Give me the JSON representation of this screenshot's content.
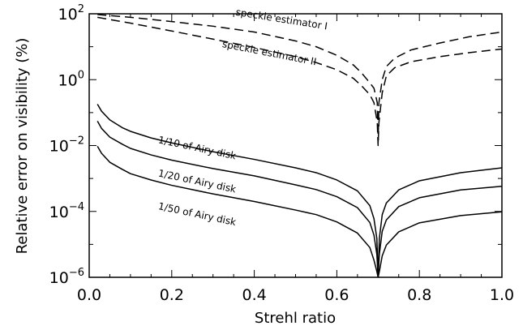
{
  "chart_data": {
    "type": "line",
    "xlabel": "Strehl ratio",
    "ylabel": "Relative error on visibility (%)",
    "xlim": [
      0.0,
      1.0
    ],
    "ylim": [
      1e-06,
      100
    ],
    "yscale": "log",
    "x_ticks": [
      0.0,
      0.2,
      0.4,
      0.6,
      0.8,
      1.0
    ],
    "x_tick_labels": [
      "0.0",
      "0.2",
      "0.4",
      "0.6",
      "0.8",
      "1.0"
    ],
    "y_ticks": [
      {
        "value": 1e-06,
        "base": "10",
        "exp": "−6"
      },
      {
        "value": 0.0001,
        "base": "10",
        "exp": "−4"
      },
      {
        "value": 0.01,
        "base": "10",
        "exp": "−2"
      },
      {
        "value": 1,
        "base": "10",
        "exp": "0"
      },
      {
        "value": 100,
        "base": "10",
        "exp": "2"
      }
    ],
    "grid": false,
    "series": [
      {
        "name": "speckle estimator I",
        "style": "dashed",
        "points": [
          [
            0.02,
            95
          ],
          [
            0.1,
            78
          ],
          [
            0.2,
            58
          ],
          [
            0.3,
            42
          ],
          [
            0.4,
            28
          ],
          [
            0.5,
            15
          ],
          [
            0.55,
            10
          ],
          [
            0.6,
            5.5
          ],
          [
            0.64,
            2.8
          ],
          [
            0.66,
            1.6
          ],
          [
            0.68,
            0.8
          ],
          [
            0.69,
            0.55
          ],
          [
            0.698,
            0.2
          ],
          [
            0.7,
            0.012
          ],
          [
            0.702,
            0.2
          ],
          [
            0.71,
            1
          ],
          [
            0.72,
            2.5
          ],
          [
            0.74,
            4.5
          ],
          [
            0.78,
            8
          ],
          [
            0.85,
            13
          ],
          [
            0.92,
            20
          ],
          [
            1.0,
            28
          ]
        ]
      },
      {
        "name": "speckle estimator II",
        "style": "dashed",
        "points": [
          [
            0.02,
            78
          ],
          [
            0.1,
            52
          ],
          [
            0.2,
            30
          ],
          [
            0.3,
            17
          ],
          [
            0.4,
            9.5
          ],
          [
            0.5,
            5
          ],
          [
            0.55,
            3.3
          ],
          [
            0.6,
            2
          ],
          [
            0.64,
            1.1
          ],
          [
            0.66,
            0.65
          ],
          [
            0.68,
            0.35
          ],
          [
            0.69,
            0.2
          ],
          [
            0.698,
            0.05
          ],
          [
            0.7,
            0.01
          ],
          [
            0.702,
            0.05
          ],
          [
            0.71,
            0.4
          ],
          [
            0.72,
            1.3
          ],
          [
            0.74,
            2.3
          ],
          [
            0.78,
            3.5
          ],
          [
            0.85,
            5
          ],
          [
            0.92,
            6.6
          ],
          [
            1.0,
            8.5
          ]
        ]
      },
      {
        "name": "1/10 of Airy disk",
        "style": "solid",
        "points": [
          [
            0.02,
            0.18
          ],
          [
            0.03,
            0.11
          ],
          [
            0.05,
            0.06
          ],
          [
            0.08,
            0.035
          ],
          [
            0.1,
            0.027
          ],
          [
            0.15,
            0.017
          ],
          [
            0.2,
            0.012
          ],
          [
            0.3,
            0.0065
          ],
          [
            0.4,
            0.0038
          ],
          [
            0.5,
            0.0021
          ],
          [
            0.55,
            0.0015
          ],
          [
            0.6,
            0.0009
          ],
          [
            0.65,
            0.00042
          ],
          [
            0.68,
            0.00015
          ],
          [
            0.69,
            6e-05
          ],
          [
            0.697,
            1.5e-05
          ],
          [
            0.7,
            1e-06
          ],
          [
            0.703,
            1.5e-05
          ],
          [
            0.71,
            8e-05
          ],
          [
            0.72,
            0.00018
          ],
          [
            0.75,
            0.00045
          ],
          [
            0.8,
            0.00085
          ],
          [
            0.9,
            0.0015
          ],
          [
            1.0,
            0.0021
          ]
        ]
      },
      {
        "name": "1/20 of Airy disk",
        "style": "solid",
        "points": [
          [
            0.02,
            0.055
          ],
          [
            0.03,
            0.033
          ],
          [
            0.05,
            0.018
          ],
          [
            0.08,
            0.011
          ],
          [
            0.1,
            0.0082
          ],
          [
            0.15,
            0.0052
          ],
          [
            0.2,
            0.0036
          ],
          [
            0.3,
            0.002
          ],
          [
            0.4,
            0.0012
          ],
          [
            0.5,
            0.00064
          ],
          [
            0.55,
            0.00046
          ],
          [
            0.6,
            0.00028
          ],
          [
            0.65,
            0.00013
          ],
          [
            0.68,
            4.6e-05
          ],
          [
            0.69,
            1.9e-05
          ],
          [
            0.697,
            5e-06
          ],
          [
            0.7,
            1e-06
          ],
          [
            0.703,
            5e-06
          ],
          [
            0.71,
            2.5e-05
          ],
          [
            0.72,
            5.5e-05
          ],
          [
            0.75,
            0.00014
          ],
          [
            0.8,
            0.00026
          ],
          [
            0.9,
            0.00045
          ],
          [
            1.0,
            0.00058
          ]
        ]
      },
      {
        "name": "1/50 of Airy disk",
        "style": "solid",
        "points": [
          [
            0.02,
            0.0095
          ],
          [
            0.03,
            0.0058
          ],
          [
            0.05,
            0.0031
          ],
          [
            0.08,
            0.0019
          ],
          [
            0.1,
            0.0014
          ],
          [
            0.15,
            0.0009
          ],
          [
            0.2,
            0.00062
          ],
          [
            0.3,
            0.00034
          ],
          [
            0.4,
            0.0002
          ],
          [
            0.5,
            0.00011
          ],
          [
            0.55,
            8e-05
          ],
          [
            0.6,
            4.8e-05
          ],
          [
            0.65,
            2.2e-05
          ],
          [
            0.68,
            8e-06
          ],
          [
            0.69,
            3.3e-06
          ],
          [
            0.697,
            1.5e-06
          ],
          [
            0.7,
            1e-06
          ],
          [
            0.703,
            1.5e-06
          ],
          [
            0.71,
            4.5e-06
          ],
          [
            0.72,
            9.5e-06
          ],
          [
            0.75,
            2.4e-05
          ],
          [
            0.8,
            4.5e-05
          ],
          [
            0.9,
            7.5e-05
          ],
          [
            1.0,
            9.7e-05
          ]
        ]
      }
    ],
    "annotations": [
      {
        "text": "speckle estimator I",
        "x": 0.465,
        "y": 55,
        "angle_deg": 9
      },
      {
        "text": "speckle estimator II",
        "x": 0.435,
        "y": 5.2,
        "angle_deg": 11
      },
      {
        "text": "1/10 of Airy disk",
        "x": 0.26,
        "y": 0.0068,
        "angle_deg": 12
      },
      {
        "text": "1/20 of Airy disk",
        "x": 0.26,
        "y": 0.00066,
        "angle_deg": 12
      },
      {
        "text": "1/50 of Airy disk",
        "x": 0.26,
        "y": 6.6e-05,
        "angle_deg": 12
      }
    ]
  }
}
